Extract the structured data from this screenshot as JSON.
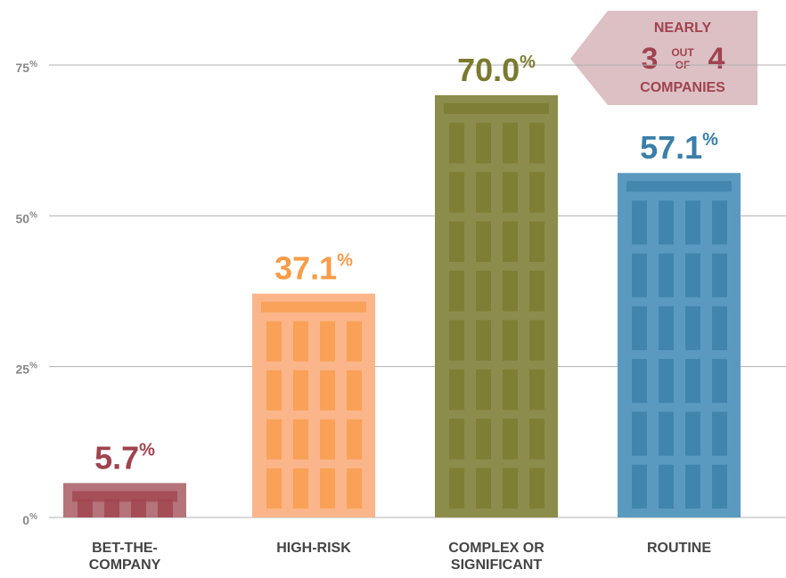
{
  "chart_data": {
    "type": "bar",
    "categories": [
      "BET-THE-COMPANY",
      "HIGH-RISK",
      "COMPLEX OR SIGNIFICANT",
      "ROUTINE"
    ],
    "values": [
      5.7,
      37.1,
      70.0,
      57.1
    ],
    "value_labels": [
      "5.7%",
      "37.1%",
      "70.0%",
      "57.1%"
    ],
    "colors": [
      "#b5737a",
      "#fbb58a",
      "#8c8c4c",
      "#5b9ac0"
    ],
    "label_colors": [
      "#a0434f",
      "#f79c4a",
      "#7a7a30",
      "#3b7fa8"
    ],
    "ylim": [
      0,
      75
    ],
    "yticks": [
      {
        "value": 0,
        "label": "0%"
      },
      {
        "value": 25,
        "label": "25%"
      },
      {
        "value": 50,
        "label": "50%"
      },
      {
        "value": 75,
        "label": "75%"
      }
    ],
    "grid": true,
    "annotation": {
      "line1": "NEARLY",
      "left": "3",
      "mid_top": "OUT",
      "mid_bottom": "OF",
      "right": "4",
      "line3": "COMPANIES"
    }
  }
}
